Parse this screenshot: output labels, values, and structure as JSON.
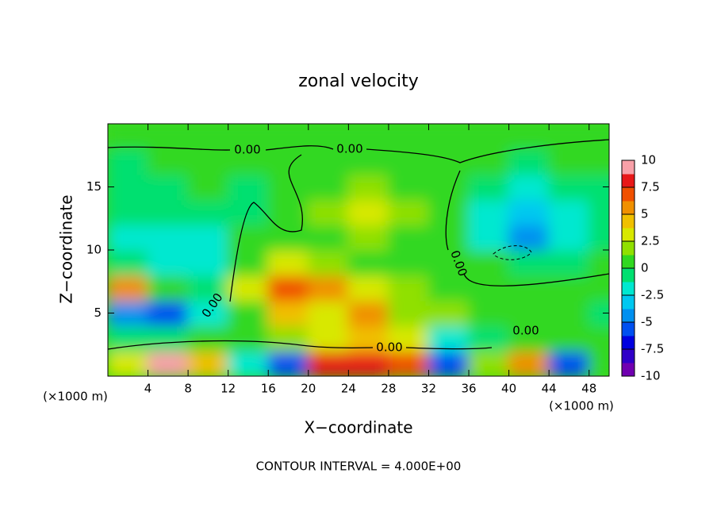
{
  "chart_data": {
    "type": "contour",
    "title": "zonal velocity",
    "x_label": "X−coordinate",
    "y_label": "Z−coordinate",
    "x_unit_label": "(×1000 m)",
    "x_unit_label_right": "(×1000 m)",
    "footer": "CONTOUR INTERVAL = 4.000E+00",
    "contour_labels": [
      "0.00",
      "0.00",
      "0.00",
      "0.00",
      "0.00",
      "0.00"
    ],
    "xlim": [
      0,
      50
    ],
    "ylim": [
      0,
      20
    ],
    "xticks": [
      4,
      8,
      12,
      16,
      20,
      24,
      28,
      32,
      36,
      40,
      44,
      48
    ],
    "yticks": [
      5,
      10,
      15
    ],
    "x": [
      2,
      6,
      10,
      14,
      18,
      22,
      26,
      30,
      34,
      38,
      42,
      46,
      50
    ],
    "y": [
      1,
      3,
      5,
      7,
      9,
      11,
      13,
      15,
      17,
      19
    ],
    "z": [
      [
        3,
        9,
        4,
        -2,
        -6,
        8,
        8,
        7,
        -6,
        2,
        6,
        -6,
        1
      ],
      [
        -1,
        -1,
        0,
        1,
        2,
        3,
        4,
        3,
        -2,
        -1,
        1,
        0,
        0
      ],
      [
        -5,
        -6,
        -2,
        1,
        4,
        3,
        5,
        2,
        2,
        1,
        1,
        0,
        -1
      ],
      [
        5,
        0,
        -1,
        3,
        7,
        6,
        3,
        2,
        1,
        1,
        0,
        1,
        0
      ],
      [
        -1,
        -2,
        -2,
        1,
        3,
        2,
        1,
        1,
        1,
        0,
        -1,
        -1,
        0
      ],
      [
        -2,
        -2,
        -2,
        0,
        1,
        1,
        2,
        1,
        0,
        -2,
        -4,
        -2,
        -1
      ],
      [
        -1,
        -1,
        -1,
        -1,
        1,
        2,
        3,
        2,
        0,
        -2,
        -3,
        -2,
        -1
      ],
      [
        -1,
        -1,
        0,
        -1,
        0,
        1,
        2,
        1,
        0,
        -1,
        -2,
        -1,
        -1
      ],
      [
        -1,
        0,
        0,
        0,
        0,
        1,
        1,
        1,
        0,
        0,
        -1,
        0,
        0
      ],
      [
        1,
        1,
        1,
        1,
        1,
        1,
        1,
        1,
        1,
        1,
        1,
        1,
        1
      ]
    ],
    "colorbar": {
      "lim": [
        -10,
        10
      ],
      "ticks": [
        10,
        7.5,
        5,
        2.5,
        0,
        -2.5,
        -5,
        -7.5,
        -10
      ],
      "colors": [
        "#7000b0",
        "#3000c8",
        "#0000e0",
        "#0050f0",
        "#0090f0",
        "#00c8f0",
        "#00e8d0",
        "#00e070",
        "#30d820",
        "#90e000",
        "#d8e800",
        "#f0c000",
        "#f09000",
        "#f05000",
        "#e81818",
        "#f8a0a8"
      ]
    }
  }
}
